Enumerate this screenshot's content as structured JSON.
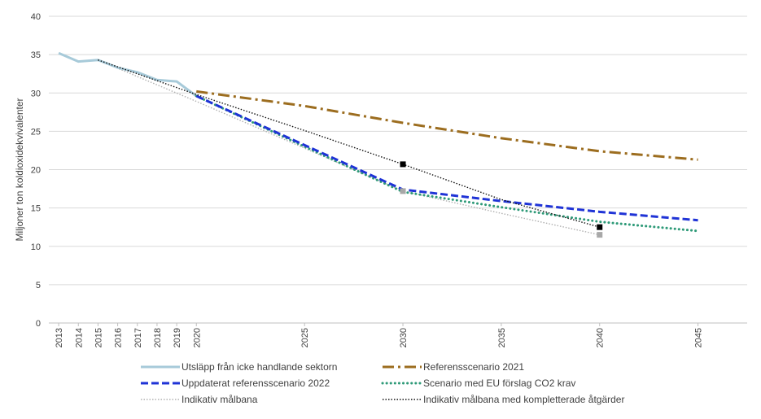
{
  "chart_data": {
    "type": "line",
    "ylabel": "Miljoner ton  koldioxidekvivalenter",
    "xlabel": "",
    "ylim": [
      0,
      40
    ],
    "yticks": [
      0,
      5,
      10,
      15,
      20,
      25,
      30,
      35,
      40
    ],
    "xticks": [
      "2013",
      "2014",
      "2015",
      "2016",
      "2017",
      "2018",
      "2019",
      "2020",
      "2025",
      "2030",
      "2035",
      "2040",
      "2045"
    ],
    "grid": "horizontal",
    "legend_position": "bottom",
    "series": [
      {
        "name": "Utsläpp från icke handlande sektorn",
        "color": "#a7cad9",
        "style": "solid-thick",
        "points": [
          [
            2013,
            35.2
          ],
          [
            2014,
            34.1
          ],
          [
            2015,
            34.3
          ],
          [
            2016,
            33.3
          ],
          [
            2017,
            32.7
          ],
          [
            2018,
            31.7
          ],
          [
            2019,
            31.5
          ],
          [
            2020,
            29.6
          ]
        ]
      },
      {
        "name": "Referensscenario 2021",
        "color": "#9c6d1f",
        "style": "dashdot",
        "points": [
          [
            2020,
            30.2
          ],
          [
            2025,
            28.3
          ],
          [
            2030,
            26.1
          ],
          [
            2035,
            24.1
          ],
          [
            2040,
            22.4
          ],
          [
            2045,
            21.3
          ]
        ]
      },
      {
        "name": "Uppdaterat referensscenario 2022",
        "color": "#1f33d6",
        "style": "dashed",
        "points": [
          [
            2020,
            29.6
          ],
          [
            2025,
            23.2
          ],
          [
            2030,
            17.4
          ],
          [
            2035,
            15.9
          ],
          [
            2040,
            14.5
          ],
          [
            2045,
            13.4
          ]
        ]
      },
      {
        "name": "Scenario med EU förslag CO2 krav",
        "color": "#2e9a78",
        "style": "dotted-thick",
        "points": [
          [
            2020,
            29.6
          ],
          [
            2025,
            23.0
          ],
          [
            2030,
            17.1
          ],
          [
            2035,
            15.1
          ],
          [
            2040,
            13.2
          ],
          [
            2045,
            12.0
          ]
        ]
      },
      {
        "name": "Indikativ målbana",
        "color": "#b0b0b0",
        "style": "dotted-thin",
        "points": [
          [
            2015,
            34.3
          ],
          [
            2020,
            28.9
          ],
          [
            2025,
            22.8
          ],
          [
            2030,
            17.2
          ],
          [
            2035,
            14.3
          ],
          [
            2040,
            11.5
          ]
        ],
        "markers": [
          [
            2030,
            17.2
          ],
          [
            2040,
            11.5
          ]
        ],
        "marker_color": "#a8a8a8"
      },
      {
        "name": "Indikativ målbana med kompletterade åtgärder",
        "color": "#111111",
        "style": "dotted-thin",
        "points": [
          [
            2015,
            34.3
          ],
          [
            2020,
            29.8
          ],
          [
            2025,
            25.1
          ],
          [
            2030,
            20.7
          ],
          [
            2035,
            16.1
          ],
          [
            2040,
            12.5
          ]
        ],
        "markers": [
          [
            2030,
            20.7
          ],
          [
            2040,
            12.5
          ]
        ],
        "marker_color": "#000000"
      }
    ]
  }
}
